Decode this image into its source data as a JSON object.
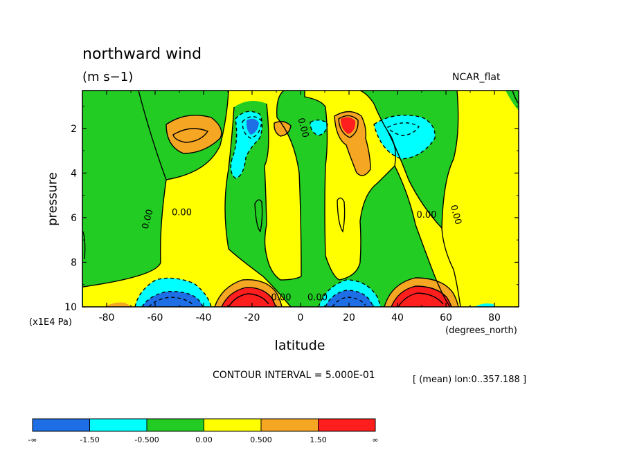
{
  "title": "northward wind",
  "units": "(m s−1)",
  "colormap_name": "NCAR_flat",
  "contour_interval": "CONTOUR INTERVAL = 5.000E-01",
  "mean_info": "[ (mean) lon:0..357.188 ]",
  "chart_data": {
    "type": "heatmap",
    "title": "northward wind",
    "subtitle": "(m s−1)",
    "xlabel": "latitude",
    "xunits": "(degrees_north)",
    "ylabel": "pressure",
    "yunits": "(x1E4 Pa)",
    "xlim": [
      -90,
      90
    ],
    "ylim": [
      0.3,
      10
    ],
    "y_inverted": true,
    "x_ticks": [
      "-80",
      "-60",
      "-40",
      "-20",
      "0",
      "20",
      "40",
      "60",
      "80"
    ],
    "x_tick_values": [
      -80,
      -60,
      -40,
      -20,
      0,
      20,
      40,
      60,
      80
    ],
    "y_ticks": [
      "2",
      "4",
      "6",
      "8",
      "10"
    ],
    "y_tick_values": [
      2,
      4,
      6,
      8,
      10
    ],
    "contour_labels": [
      {
        "text": "0.00",
        "lat": -62,
        "p": 6.1
      },
      {
        "text": "0.00",
        "lat": -49,
        "p": 5.9
      },
      {
        "text": "0.00",
        "lat": 0,
        "p": 2.0
      },
      {
        "text": "0.00",
        "lat": -8,
        "p": 9.7
      },
      {
        "text": "0.00",
        "lat": 7,
        "p": 9.7
      },
      {
        "text": "0.00",
        "lat": 52,
        "p": 6.0
      },
      {
        "text": "0.00",
        "lat": 63,
        "p": 5.9
      }
    ],
    "colorbar": {
      "labels": [
        "-∞",
        "-1.50",
        "-0.500",
        "0.00",
        "0.500",
        "1.50",
        "∞"
      ],
      "colors": [
        "#1e6ee6",
        "#00ffff",
        "#22cc22",
        "#ffff00",
        "#f5a623",
        "#ff1e1e"
      ]
    },
    "features": [
      {
        "kind": "max",
        "lat": -40,
        "p": 1.9,
        "level": "0.5 to 1.5"
      },
      {
        "kind": "min",
        "lat": -18,
        "p": 1.8,
        "level": "below -1.5"
      },
      {
        "kind": "max",
        "lat": 19,
        "p": 1.8,
        "level": "above 1.5"
      },
      {
        "kind": "min",
        "lat": 45,
        "p": 2.0,
        "level": "-1.5 to -0.5"
      },
      {
        "kind": "min",
        "lat": -48,
        "p": 10,
        "level": "below -1.5"
      },
      {
        "kind": "max",
        "lat": -19,
        "p": 10,
        "level": "above 1.5"
      },
      {
        "kind": "min",
        "lat": 21,
        "p": 10,
        "level": "below -1.5"
      },
      {
        "kind": "max",
        "lat": 49,
        "p": 10,
        "level": "above 1.5"
      }
    ]
  }
}
